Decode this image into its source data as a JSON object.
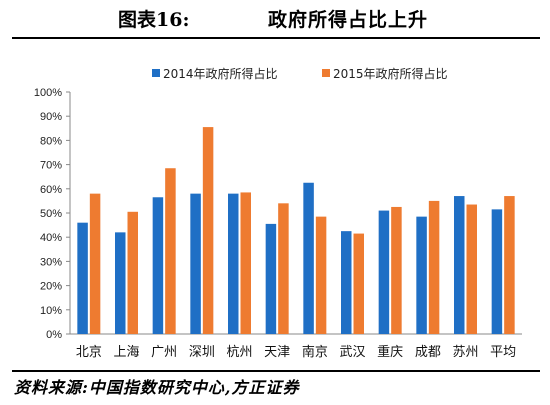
{
  "figure": {
    "label": "图表16:",
    "heading": "政府所得占比上升",
    "source": "资料来源:中国指数研究中心,方正证券"
  },
  "chart_data": {
    "type": "bar",
    "categories": [
      "北京",
      "上海",
      "广州",
      "深圳",
      "杭州",
      "天津",
      "南京",
      "武汉",
      "重庆",
      "成都",
      "苏州",
      "平均"
    ],
    "series": [
      {
        "name": "2014年政府所得占比",
        "color": "#1f6fc5",
        "values": [
          46,
          42,
          56.5,
          58,
          58,
          45.5,
          62.5,
          42.5,
          51,
          48.5,
          57,
          51.5
        ]
      },
      {
        "name": "2015年政府所得占比",
        "color": "#ee7b30",
        "values": [
          58,
          50.5,
          68.5,
          85.5,
          58.5,
          54,
          48.5,
          41.5,
          52.5,
          55,
          53.5,
          57
        ]
      }
    ],
    "ylim": [
      0,
      100
    ],
    "yticks": [
      "0%",
      "10%",
      "20%",
      "30%",
      "40%",
      "50%",
      "60%",
      "70%",
      "80%",
      "90%",
      "100%"
    ],
    "legend_position": "top",
    "grid": false
  }
}
